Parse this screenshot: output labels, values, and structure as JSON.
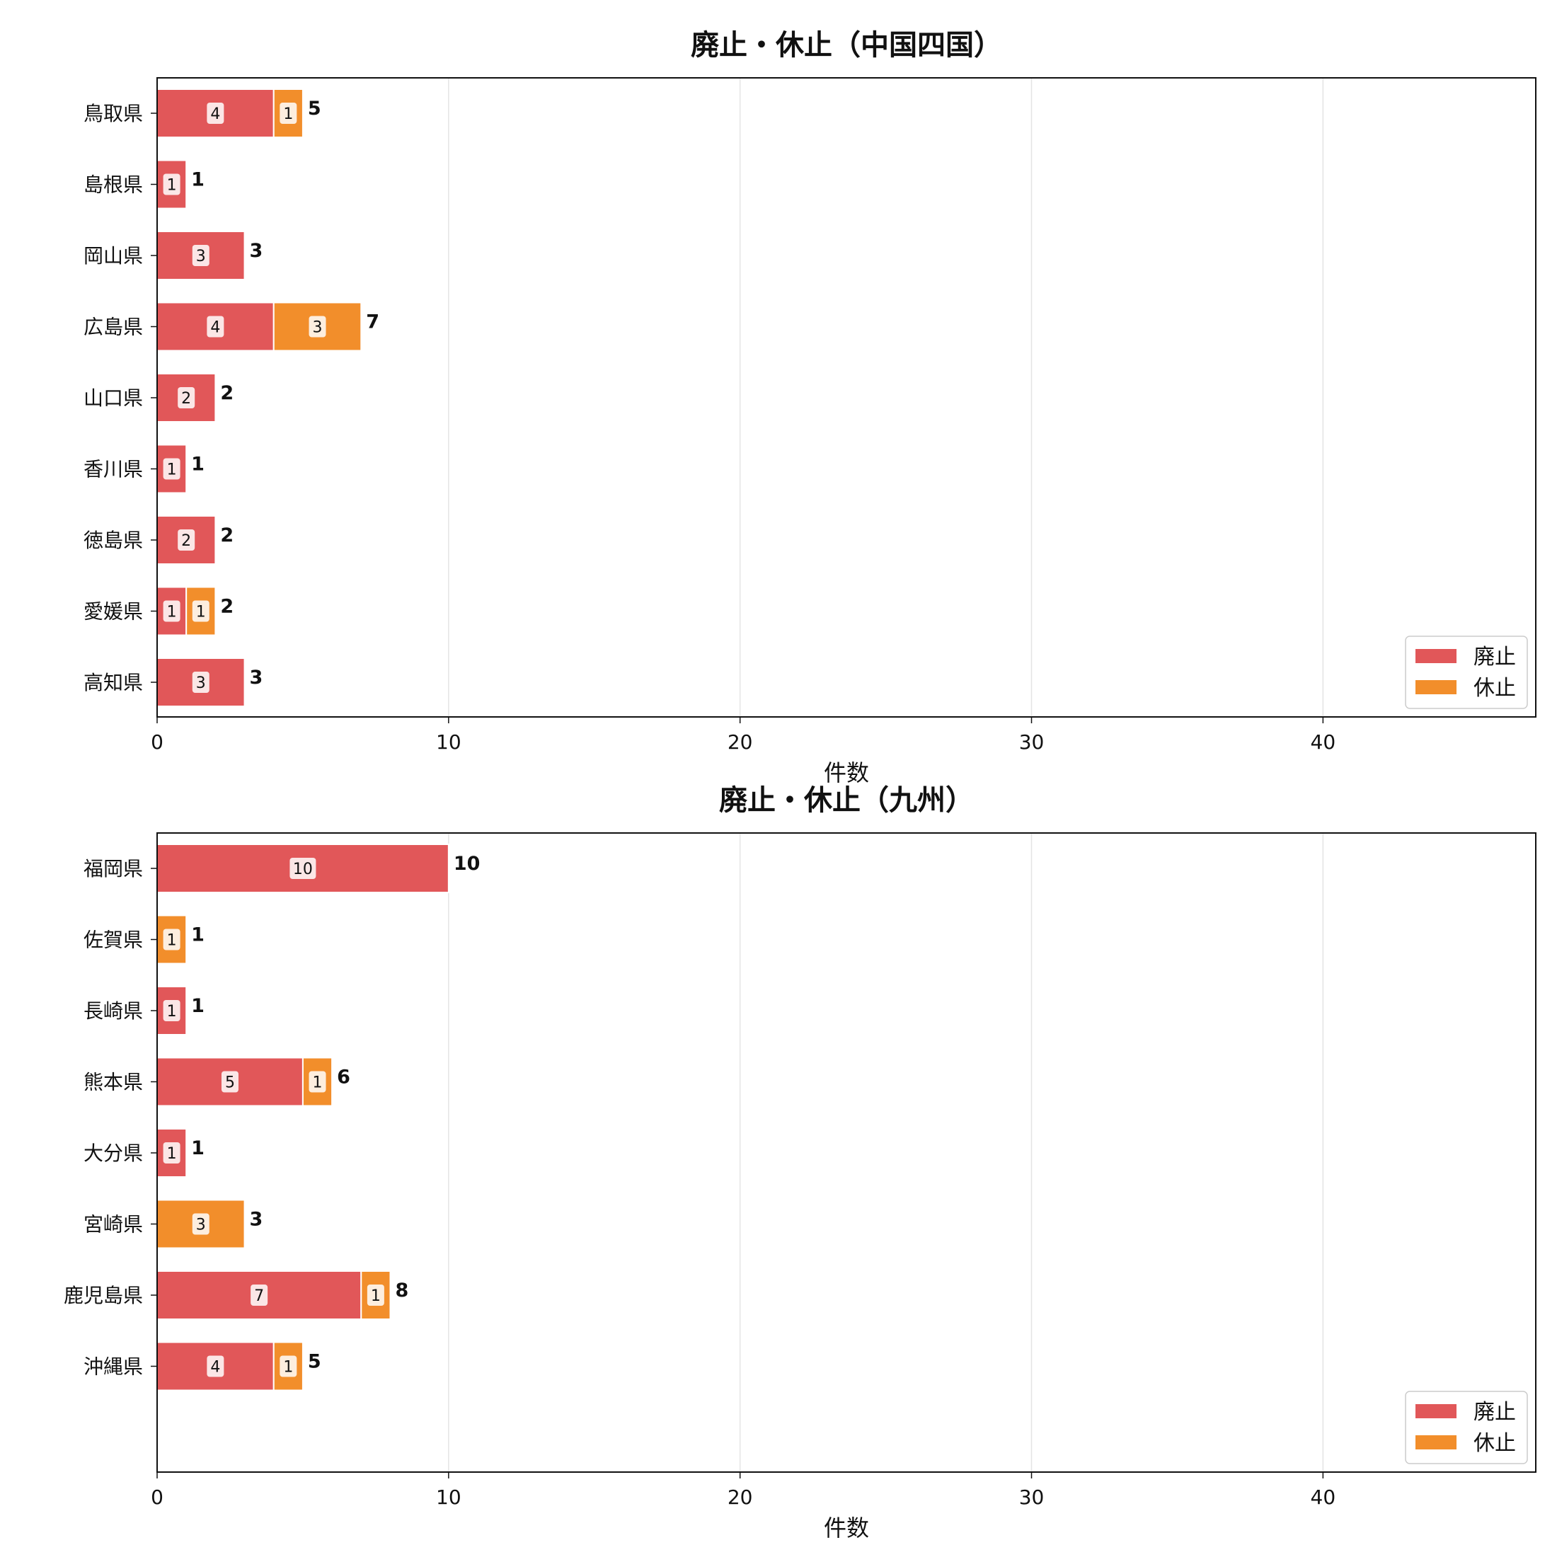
{
  "chart_data": [
    {
      "type": "bar",
      "orientation": "horizontal",
      "stacked": true,
      "title": "廃止・休止（中国四国）",
      "xlabel": "件数",
      "ylabel": "",
      "xlim": [
        0,
        47.3
      ],
      "xticks": [
        0,
        10,
        20,
        30,
        40
      ],
      "grid": "vertical",
      "legend_position": "bottom-right",
      "categories": [
        "鳥取県",
        "島根県",
        "岡山県",
        "広島県",
        "山口県",
        "香川県",
        "徳島県",
        "愛媛県",
        "高知県"
      ],
      "series": [
        {
          "name": "廃止",
          "color": "#e15759",
          "values": [
            4,
            1,
            3,
            4,
            2,
            1,
            2,
            1,
            3
          ]
        },
        {
          "name": "休止",
          "color": "#f28e2b",
          "values": [
            1,
            0,
            0,
            3,
            0,
            0,
            0,
            1,
            0
          ]
        }
      ],
      "totals": [
        5,
        1,
        3,
        7,
        2,
        1,
        2,
        2,
        3
      ]
    },
    {
      "type": "bar",
      "orientation": "horizontal",
      "stacked": true,
      "title": "廃止・休止（九州）",
      "xlabel": "件数",
      "ylabel": "",
      "xlim": [
        0,
        47.3
      ],
      "xticks": [
        0,
        10,
        20,
        30,
        40
      ],
      "grid": "vertical",
      "legend_position": "bottom-right",
      "categories": [
        "福岡県",
        "佐賀県",
        "長崎県",
        "熊本県",
        "大分県",
        "宮崎県",
        "鹿児島県",
        "沖縄県"
      ],
      "series": [
        {
          "name": "廃止",
          "color": "#e15759",
          "values": [
            10,
            0,
            1,
            5,
            1,
            0,
            7,
            4
          ]
        },
        {
          "name": "休止",
          "color": "#f28e2b",
          "values": [
            0,
            1,
            0,
            1,
            0,
            3,
            1,
            1
          ]
        }
      ],
      "totals": [
        10,
        1,
        1,
        6,
        1,
        3,
        8,
        5
      ]
    }
  ]
}
